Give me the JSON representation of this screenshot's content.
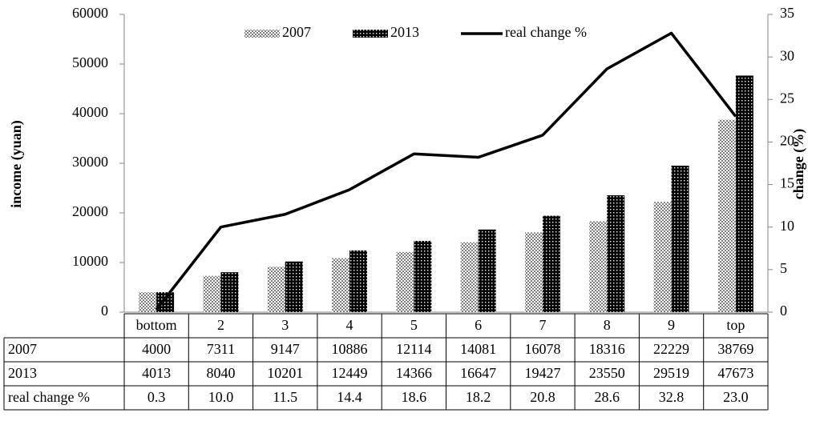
{
  "chart_data": {
    "type": "bar",
    "categories": [
      "bottom",
      "2",
      "3",
      "4",
      "5",
      "6",
      "7",
      "8",
      "9",
      "top"
    ],
    "series": [
      {
        "name": "2007",
        "color": "#7f7f7f",
        "values": [
          4000,
          7311,
          9147,
          10886,
          12114,
          14081,
          16078,
          18316,
          22229,
          38769
        ]
      },
      {
        "name": "2013",
        "color": "#000000",
        "values": [
          4013,
          8040,
          10201,
          12449,
          14366,
          16647,
          19427,
          23550,
          29519,
          47673
        ]
      },
      {
        "name": "real change %",
        "color": "#000000",
        "type": "line",
        "axis": "y2",
        "values": [
          0.3,
          10,
          11.5,
          14.4,
          18.6,
          18.2,
          20.8,
          28.6,
          32.8,
          23
        ],
        "value_labels": [
          "0.3",
          "10.0",
          "11.5",
          "14.4",
          "18.6",
          "18.2",
          "20.8",
          "28.6",
          "32.8",
          "23.0"
        ]
      }
    ],
    "ylabel": "income (yuan)",
    "y2label": "change (%)",
    "ylim": [
      0,
      60000
    ],
    "yticks": [
      0,
      10000,
      20000,
      30000,
      40000,
      50000,
      60000
    ],
    "y2lim": [
      0,
      35
    ],
    "y2ticks": [
      0,
      5,
      10,
      15,
      20,
      25,
      30,
      35
    ],
    "legend": "top",
    "grid": false
  }
}
